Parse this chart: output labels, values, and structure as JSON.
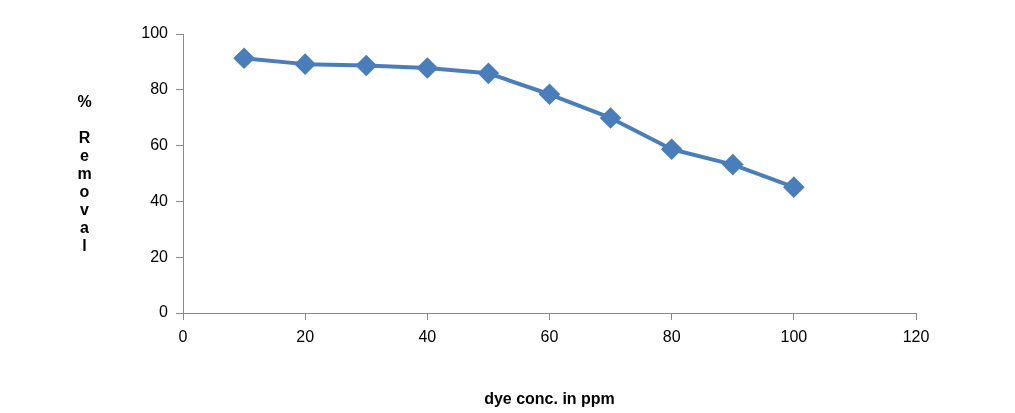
{
  "chart_data": {
    "type": "line",
    "xlabel": "dye conc. in ppm",
    "ylabel": "% Removal",
    "x": [
      10,
      20,
      30,
      40,
      50,
      60,
      70,
      80,
      90,
      100
    ],
    "series": [
      {
        "color": "#4a7ebb",
        "values": [
          91.3,
          89.2,
          88.7,
          87.8,
          85.9,
          78.4,
          69.9,
          58.7,
          53.2,
          45.1
        ]
      }
    ],
    "xlim": [
      0,
      120
    ],
    "xticks": [
      0,
      20,
      40,
      60,
      80,
      100,
      120
    ],
    "ylim": [
      0,
      100
    ],
    "yticks": [
      0,
      20,
      40,
      60,
      80,
      100
    ],
    "grid": false,
    "legend": false,
    "marker": "diamond",
    "line_style": "solid"
  }
}
